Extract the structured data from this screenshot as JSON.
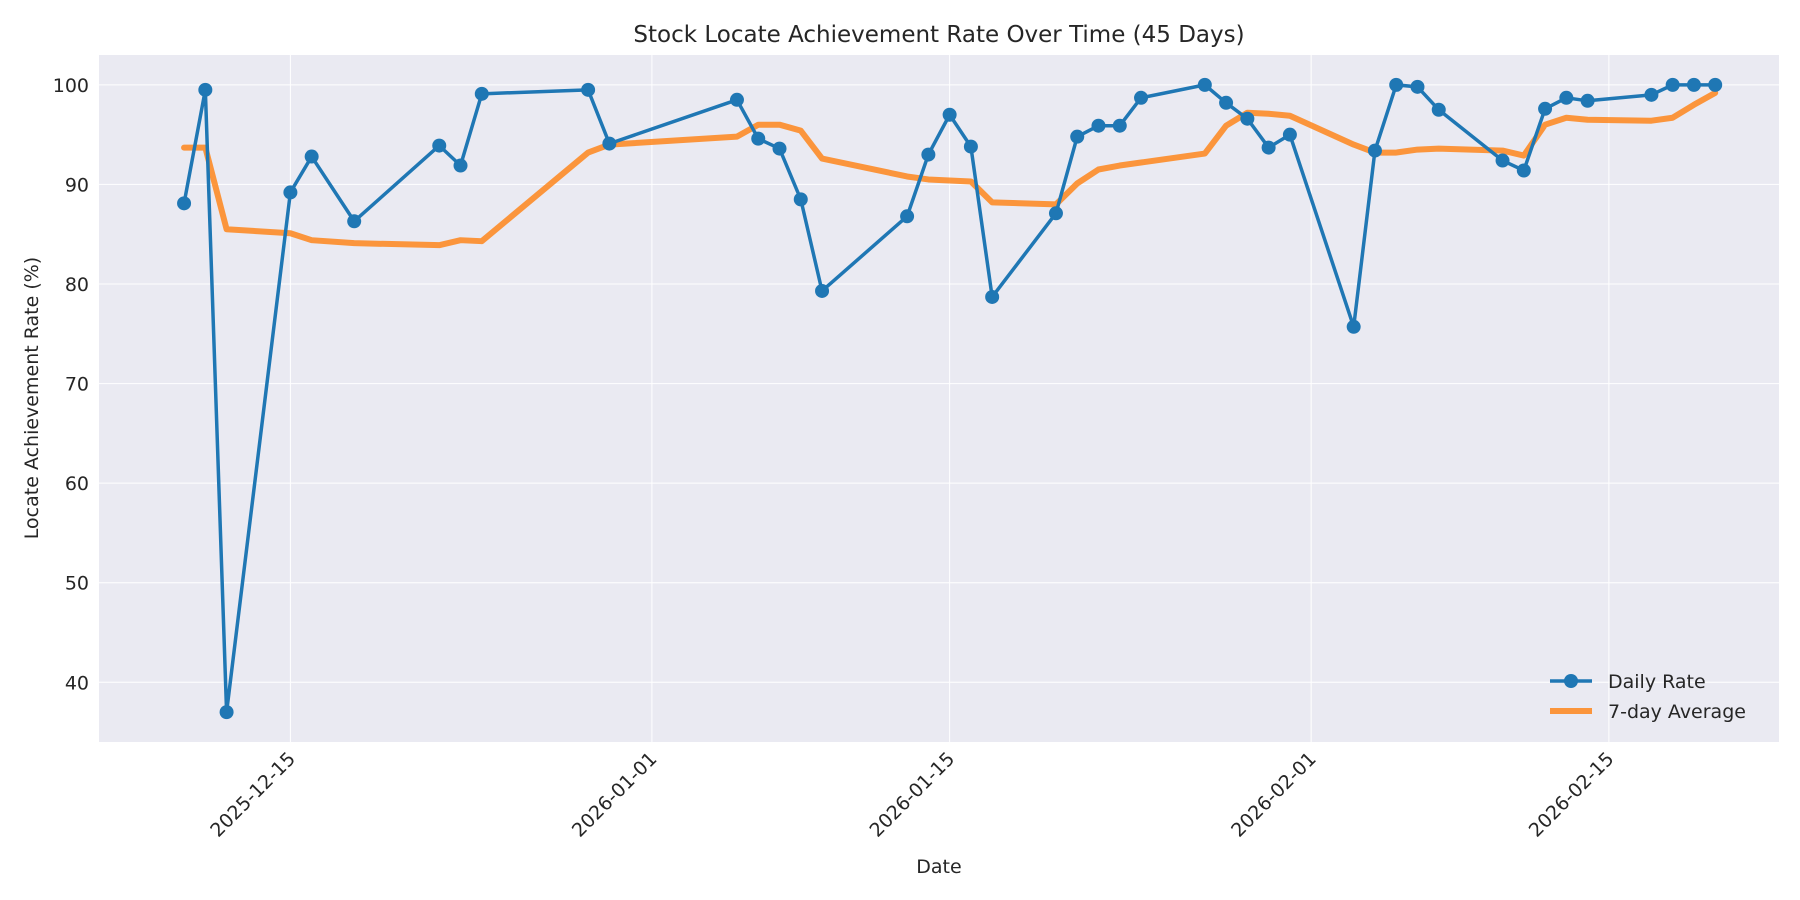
{
  "chart_data": {
    "type": "line",
    "title": "Stock Locate Achievement Rate Over Time (45 Days)",
    "xlabel": "Date",
    "ylabel": "Locate Achievement Rate (%)",
    "xlim": [
      "2025-12-06",
      "2026-02-23"
    ],
    "ylim": [
      34,
      103
    ],
    "x_ticks": [
      "2025-12-15",
      "2026-01-01",
      "2026-01-15",
      "2026-02-01",
      "2026-02-15"
    ],
    "y_ticks": [
      40,
      50,
      60,
      70,
      80,
      90,
      100
    ],
    "grid": true,
    "legend_position": "lower-right",
    "x": [
      "2025-12-10",
      "2025-12-11",
      "2025-12-12",
      "2025-12-15",
      "2025-12-16",
      "2025-12-18",
      "2025-12-22",
      "2025-12-23",
      "2025-12-24",
      "2025-12-29",
      "2025-12-30",
      "2026-01-05",
      "2026-01-06",
      "2026-01-07",
      "2026-01-08",
      "2026-01-09",
      "2026-01-13",
      "2026-01-14",
      "2026-01-15",
      "2026-01-16",
      "2026-01-17",
      "2026-01-20",
      "2026-01-21",
      "2026-01-22",
      "2026-01-23",
      "2026-01-24",
      "2026-01-27",
      "2026-01-28",
      "2026-01-29",
      "2026-01-30",
      "2026-01-31",
      "2026-02-03",
      "2026-02-04",
      "2026-02-05",
      "2026-02-06",
      "2026-02-07",
      "2026-02-10",
      "2026-02-11",
      "2026-02-12",
      "2026-02-13",
      "2026-02-14",
      "2026-02-17",
      "2026-02-18",
      "2026-02-19",
      "2026-02-20"
    ],
    "series": [
      {
        "name": "Daily Rate",
        "color": "#1f77b4",
        "style": "line-marker",
        "values": [
          88.1,
          99.5,
          37.0,
          89.2,
          92.8,
          86.3,
          93.9,
          91.9,
          99.1,
          99.5,
          94.1,
          98.5,
          94.6,
          93.6,
          88.5,
          79.3,
          86.8,
          93.0,
          97.0,
          93.8,
          78.7,
          87.1,
          94.8,
          95.9,
          95.9,
          98.7,
          100.0,
          98.2,
          96.6,
          93.7,
          95.0,
          75.7,
          93.4,
          100.0,
          99.8,
          97.5,
          92.4,
          91.4,
          97.6,
          98.7,
          98.4,
          99.0,
          100.0,
          100.0,
          100.0
        ]
      },
      {
        "name": "7-day Average",
        "color": "#ff7f0e",
        "style": "line",
        "values": [
          93.7,
          93.7,
          85.5,
          85.1,
          84.4,
          84.1,
          83.9,
          84.4,
          84.3,
          93.2,
          94.0,
          94.8,
          96.0,
          96.0,
          95.4,
          92.6,
          90.8,
          90.5,
          90.4,
          90.3,
          88.2,
          88.0,
          90.1,
          91.5,
          91.9,
          92.2,
          93.1,
          95.9,
          97.2,
          97.1,
          96.9,
          94.0,
          93.2,
          93.2,
          93.5,
          93.6,
          93.4,
          92.9,
          96.0,
          96.7,
          96.5,
          96.4,
          96.7,
          98.0,
          99.2
        ]
      }
    ]
  }
}
